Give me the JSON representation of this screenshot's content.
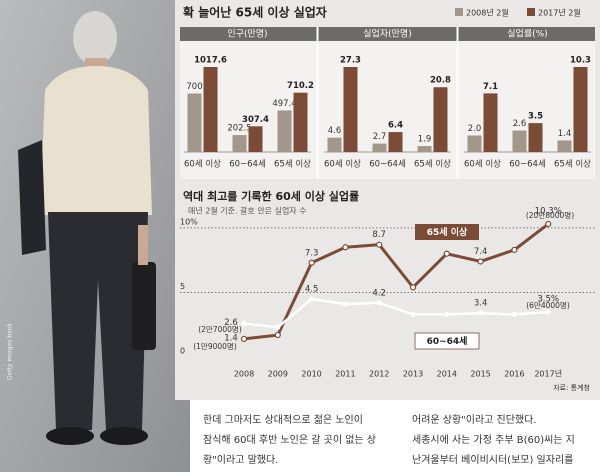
{
  "header": {
    "title": "확 늘어난 65세 이상 실업자",
    "photo_credit": "Getty images bank"
  },
  "chart_data": [
    {
      "type": "bar",
      "title": "인구(만명)",
      "categories": [
        "60세 이상",
        "60~64세",
        "65세 이상"
      ],
      "series": [
        {
          "name": "2008년 2월",
          "color": "#a3978b",
          "values": [
            700,
            202.5,
            497.4
          ]
        },
        {
          "name": "2017년 2월",
          "color": "#7b4b36",
          "values": [
            1017.6,
            307.4,
            710.2
          ]
        }
      ]
    },
    {
      "type": "bar",
      "title": "실업자(만명)",
      "categories": [
        "60세 이상",
        "60~64세",
        "65세 이상"
      ],
      "series": [
        {
          "name": "2008년 2월",
          "color": "#a3978b",
          "values": [
            4.6,
            2.7,
            1.9
          ]
        },
        {
          "name": "2017년 2월",
          "color": "#7b4b36",
          "values": [
            27.3,
            6.4,
            20.8
          ]
        }
      ]
    },
    {
      "type": "bar",
      "title": "실업률(%)",
      "categories": [
        "60세 이상",
        "60~64세",
        "65세 이상"
      ],
      "series": [
        {
          "name": "2008년 2월",
          "color": "#a3978b",
          "values": [
            2.0,
            2.6,
            1.4
          ],
          "value_labels": [
            "2.0",
            "2.6",
            "1.4"
          ]
        },
        {
          "name": "2017년 2월",
          "color": "#7b4b36",
          "values": [
            7.1,
            3.5,
            10.3
          ]
        }
      ]
    },
    {
      "type": "line",
      "title": "역대 최고를 기록한 60세 이상 실업률",
      "subtitle": "매년 2월 기준. 괄호 안은 실업자 수",
      "categories": [
        "2008",
        "2009",
        "2010",
        "2011",
        "2012",
        "2013",
        "2014",
        "2015",
        "2016",
        "2017년"
      ],
      "series": [
        {
          "name": "65세 이상",
          "color": "#7b4b36",
          "values": [
            1.4,
            1.7,
            7.3,
            8.5,
            8.7,
            5.4,
            8.0,
            7.4,
            8.3,
            10.3
          ],
          "value_labels": [
            "1.4",
            null,
            "7.3",
            null,
            "8.7",
            null,
            null,
            "7.4",
            null,
            "10.3%"
          ]
        },
        {
          "name": "60~64세",
          "color": "#ffffff",
          "values": [
            2.6,
            2.3,
            4.5,
            4.1,
            4.2,
            3.3,
            3.3,
            3.4,
            3.3,
            3.5
          ],
          "value_labels": [
            "2.6",
            null,
            "4.5",
            null,
            "4.2",
            null,
            null,
            "3.4",
            null,
            "3.5%"
          ]
        }
      ],
      "ylim": [
        0,
        11
      ],
      "yticks": [
        0,
        5,
        {
          "value": 10,
          "label": "10%"
        }
      ],
      "grid": true,
      "annotations": [
        "(20만8000명)",
        "(6만4000명)",
        "(2만7000명)",
        "(1만9000명)"
      ],
      "source": "자료: 통계청"
    }
  ],
  "article": {
    "columns": [
      [
        "한데 그마저도 상대적으로 젊은 노인이",
        "잠식해 60대 후반 노인은 갈 곳이 없는 상",
        "황\"이라고 말했다."
      ],
      [
        "어려운 상황\"이라고 진단했다.",
        " 세종시에 사는 가정 주부 B(60)씨는 지",
        "난겨울부터 베이비시터(보모) 일자리를"
      ]
    ]
  }
}
